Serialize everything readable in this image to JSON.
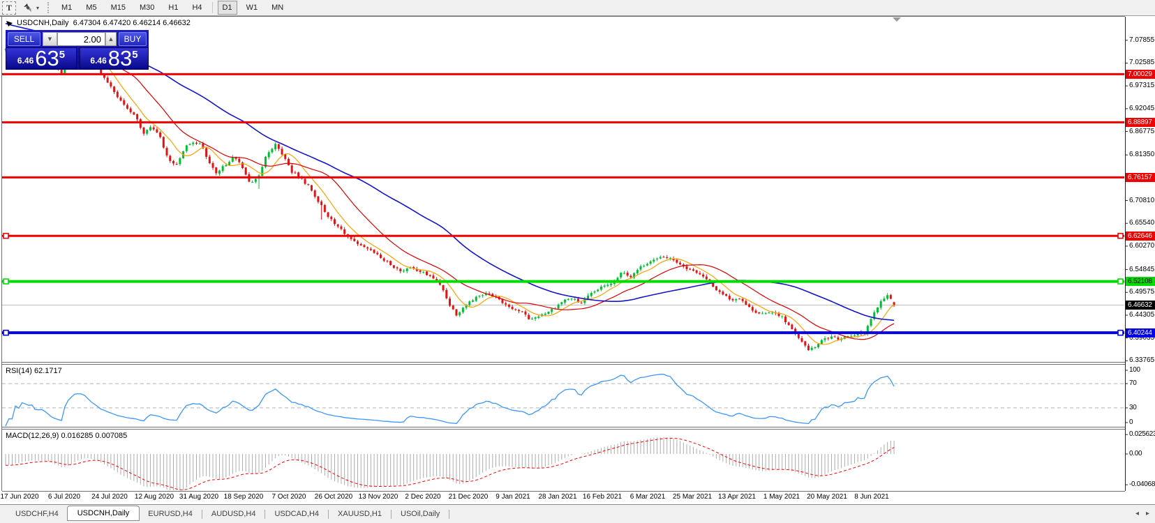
{
  "toolbar": {
    "text_tool_label": "T",
    "dropdown_caret": "▾",
    "timeframes": [
      "M1",
      "M5",
      "M15",
      "M30",
      "H1",
      "H4",
      "D1",
      "W1",
      "MN"
    ],
    "active_timeframe": "D1"
  },
  "chart": {
    "title": "USDCNH,Daily  6.47304 6.47420 6.46214 6.46632"
  },
  "trade_panel": {
    "sell_label": "SELL",
    "buy_label": "BUY",
    "volume": "2.00",
    "spin_down": "▼",
    "spin_up": "▲",
    "sell_price": {
      "small": "6.46",
      "big": "63",
      "sup": "5"
    },
    "buy_price": {
      "small": "6.46",
      "big": "83",
      "sup": "5"
    }
  },
  "indicators": {
    "rsi_label": "RSI(14) 62.1717",
    "macd_label": "MACD(12,26,9) 0.016285 0.007085"
  },
  "chart_data": {
    "type": "candlestick",
    "symbol": "USDCNH",
    "period": "Daily",
    "current_bar": {
      "open": 6.47304,
      "high": 6.4742,
      "low": 6.46214,
      "close": 6.46632
    },
    "price_axis": {
      "range": [
        6.335,
        7.133
      ],
      "ticks": [
        "7.07855",
        "7.02585",
        "6.97315",
        "6.92045",
        "6.86775",
        "6.81350",
        "6.70810",
        "6.65540",
        "6.60270",
        "6.54845",
        "6.49575",
        "6.44305",
        "6.39035",
        "6.33765"
      ]
    },
    "hlines": [
      {
        "price": 7.00029,
        "label": "7.00029",
        "color": "#ee0000",
        "width": 3,
        "text_color": "#ffffff",
        "handles": false
      },
      {
        "price": 6.88897,
        "label": "6.88897",
        "color": "#ee0000",
        "width": 3,
        "text_color": "#ffffff",
        "handles": false
      },
      {
        "price": 6.76157,
        "label": "6.76157",
        "color": "#ee0000",
        "width": 3,
        "text_color": "#ffffff",
        "handles": false
      },
      {
        "price": 6.62646,
        "label": "6.62646",
        "color": "#ee0000",
        "width": 3,
        "text_color": "#ffffff",
        "handles": true
      },
      {
        "price": 6.52108,
        "label": "6.52108",
        "color": "#00dc00",
        "width": 4,
        "text_color": "#000000",
        "handles": true
      },
      {
        "price": 6.40244,
        "label": "6.40244",
        "color": "#0000e6",
        "width": 4,
        "text_color": "#ffffff",
        "handles": true
      }
    ],
    "current_price": {
      "value": 6.46632,
      "label": "6.46632",
      "line_color": "#c0c0c0",
      "label_bg": "#000000",
      "label_text": "#ffffff"
    },
    "date_labels": [
      "17 Jun 2020",
      "6 Jul 2020",
      "24 Jul 2020",
      "12 Aug 2020",
      "31 Aug 2020",
      "18 Sep 2020",
      "7 Oct 2020",
      "26 Oct 2020",
      "13 Nov 2020",
      "2 Dec 2020",
      "21 Dec 2020",
      "9 Jan 2021",
      "28 Jan 2021",
      "16 Feb 2021",
      "6 Mar 2021",
      "25 Mar 2021",
      "13 Apr 2021",
      "1 May 2021",
      "20 May 2021",
      "8 Jun 2021"
    ],
    "colors": {
      "up": "#00be32",
      "down": "#e01414",
      "ma_fast": "#ffa000",
      "ma_mid": "#dc0000",
      "ma_slow": "#1414c8",
      "rsi": "#3c96fa",
      "rsi_guide": "#b4b4b4",
      "macd_hist": "#acacac",
      "macd_signal": "#ff0000"
    },
    "moving_averages": [
      {
        "name": "fast",
        "period": 8
      },
      {
        "name": "mid",
        "period": 21
      },
      {
        "name": "slow",
        "period": 55
      }
    ],
    "price_path": [
      [
        8,
        7.058
      ],
      [
        22,
        7.068
      ],
      [
        38,
        7.072
      ],
      [
        52,
        7.06
      ],
      [
        66,
        7.052
      ],
      [
        78,
        7.022
      ],
      [
        88,
        7.004
      ],
      [
        98,
        7.04
      ],
      [
        110,
        7.062
      ],
      [
        122,
        7.055
      ],
      [
        134,
        7.03
      ],
      [
        146,
        6.995
      ],
      [
        158,
        6.975
      ],
      [
        170,
        6.945
      ],
      [
        182,
        6.92
      ],
      [
        194,
        6.905
      ],
      [
        206,
        6.862
      ],
      [
        218,
        6.88
      ],
      [
        230,
        6.852
      ],
      [
        242,
        6.798
      ],
      [
        252,
        6.79
      ],
      [
        264,
        6.828
      ],
      [
        276,
        6.845
      ],
      [
        288,
        6.838
      ],
      [
        298,
        6.8
      ],
      [
        310,
        6.768
      ],
      [
        322,
        6.79
      ],
      [
        334,
        6.808
      ],
      [
        346,
        6.792
      ],
      [
        358,
        6.745
      ],
      [
        370,
        6.76
      ],
      [
        382,
        6.815
      ],
      [
        394,
        6.838
      ],
      [
        406,
        6.812
      ],
      [
        418,
        6.775
      ],
      [
        430,
        6.76
      ],
      [
        442,
        6.742
      ],
      [
        454,
        6.712
      ],
      [
        466,
        6.682
      ],
      [
        478,
        6.655
      ],
      [
        490,
        6.64
      ],
      [
        502,
        6.618
      ],
      [
        514,
        6.604
      ],
      [
        526,
        6.596
      ],
      [
        538,
        6.585
      ],
      [
        550,
        6.57
      ],
      [
        562,
        6.558
      ],
      [
        574,
        6.545
      ],
      [
        586,
        6.552
      ],
      [
        598,
        6.548
      ],
      [
        610,
        6.538
      ],
      [
        622,
        6.528
      ],
      [
        634,
        6.505
      ],
      [
        644,
        6.468
      ],
      [
        654,
        6.445
      ],
      [
        664,
        6.462
      ],
      [
        676,
        6.478
      ],
      [
        688,
        6.49
      ],
      [
        700,
        6.492
      ],
      [
        712,
        6.486
      ],
      [
        724,
        6.468
      ],
      [
        736,
        6.458
      ],
      [
        748,
        6.45
      ],
      [
        760,
        6.432
      ],
      [
        772,
        6.442
      ],
      [
        784,
        6.45
      ],
      [
        796,
        6.462
      ],
      [
        808,
        6.478
      ],
      [
        820,
        6.482
      ],
      [
        832,
        6.47
      ],
      [
        844,
        6.488
      ],
      [
        856,
        6.502
      ],
      [
        868,
        6.512
      ],
      [
        880,
        6.522
      ],
      [
        892,
        6.545
      ],
      [
        904,
        6.532
      ],
      [
        916,
        6.552
      ],
      [
        928,
        6.565
      ],
      [
        940,
        6.572
      ],
      [
        952,
        6.578
      ],
      [
        964,
        6.572
      ],
      [
        976,
        6.56
      ],
      [
        988,
        6.548
      ],
      [
        1000,
        6.542
      ],
      [
        1012,
        6.525
      ],
      [
        1024,
        6.505
      ],
      [
        1036,
        6.492
      ],
      [
        1048,
        6.478
      ],
      [
        1060,
        6.484
      ],
      [
        1072,
        6.462
      ],
      [
        1084,
        6.45
      ],
      [
        1096,
        6.444
      ],
      [
        1108,
        6.452
      ],
      [
        1120,
        6.44
      ],
      [
        1130,
        6.42
      ],
      [
        1140,
        6.398
      ],
      [
        1150,
        6.378
      ],
      [
        1160,
        6.362
      ],
      [
        1170,
        6.372
      ],
      [
        1180,
        6.388
      ],
      [
        1190,
        6.392
      ],
      [
        1200,
        6.388
      ],
      [
        1210,
        6.394
      ],
      [
        1220,
        6.398
      ],
      [
        1230,
        6.4
      ],
      [
        1238,
        6.402
      ],
      [
        1246,
        6.428
      ],
      [
        1254,
        6.452
      ],
      [
        1262,
        6.472
      ],
      [
        1270,
        6.49
      ],
      [
        1276,
        6.482
      ],
      [
        1283,
        6.466
      ]
    ],
    "wick_spikes": [
      [
        372,
        6.735
      ],
      [
        461,
        6.664
      ],
      [
        575,
        6.606
      ]
    ],
    "warmup_range": [
      7.19,
      7.06
    ],
    "rsi_axis": {
      "levels": [
        "100",
        "70",
        "30",
        "0"
      ],
      "guides": [
        70,
        30
      ]
    },
    "macd_axis": {
      "ticks": [
        {
          "label": "0.025623",
          "value": 0.025623
        },
        {
          "label": "0.00",
          "value": 0
        },
        {
          "label": "-0.040687",
          "value": -0.040687
        }
      ]
    }
  },
  "tabs": {
    "items": [
      {
        "label": "USDCHF,H4",
        "active": false
      },
      {
        "label": "USDCNH,Daily",
        "active": true
      },
      {
        "label": "EURUSD,H4",
        "active": false
      },
      {
        "label": "AUDUSD,H4",
        "active": false
      },
      {
        "label": "USDCAD,H4",
        "active": false
      },
      {
        "label": "XAUUSD,H1",
        "active": false
      },
      {
        "label": "USOil,Daily",
        "active": false
      }
    ],
    "scroll_left": "◂",
    "scroll_right": "▸"
  }
}
